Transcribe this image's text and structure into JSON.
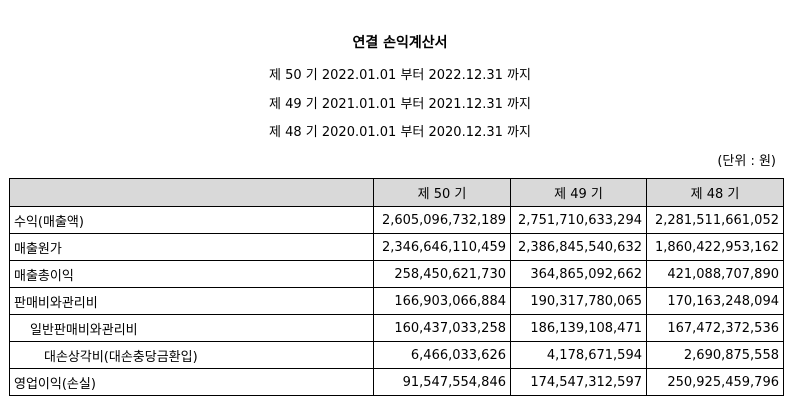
{
  "document": {
    "title": "연결 손익계산서",
    "periods": [
      "제 50 기 2022.01.01 부터 2022.12.31 까지",
      "제 49 기 2021.01.01 부터 2021.12.31 까지",
      "제 48 기 2020.01.01 부터 2020.12.31 까지"
    ],
    "unit": "(단위 : 원)"
  },
  "table": {
    "headers": [
      "",
      "제 50 기",
      "제 49 기",
      "제 48 기"
    ],
    "rows": [
      {
        "label": "수익(매출액)",
        "v50": "2,605,096,732,189",
        "v49": "2,751,710,633,294",
        "v48": "2,281,511,661,052"
      },
      {
        "label": "매출원가",
        "v50": "2,346,646,110,459",
        "v49": "2,386,845,540,632",
        "v48": "1,860,422,953,162"
      },
      {
        "label": "매출총이익",
        "v50": "258,450,621,730",
        "v49": "364,865,092,662",
        "v48": "421,088,707,890"
      },
      {
        "label": "판매비와관리비",
        "v50": "166,903,066,884",
        "v49": "190,317,780,065",
        "v48": "170,163,248,094"
      },
      {
        "label": "일반판매비와관리비",
        "v50": "160,437,033,258",
        "v49": "186,139,108,471",
        "v48": "167,472,372,536"
      },
      {
        "label": "대손상각비(대손충당금환입)",
        "v50": "6,466,033,626",
        "v49": "4,178,671,594",
        "v48": "2,690,875,558"
      },
      {
        "label": "영업이익(손실)",
        "v50": "91,547,554,846",
        "v49": "174,547,312,597",
        "v48": "250,925,459,796"
      }
    ]
  }
}
